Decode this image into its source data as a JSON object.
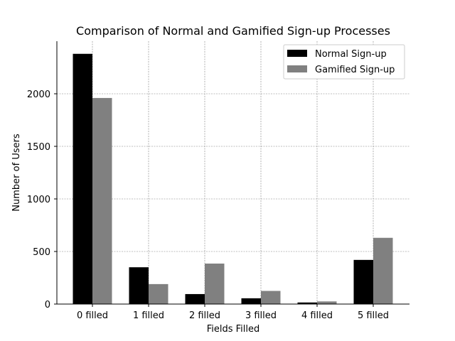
{
  "chart_data": {
    "type": "bar",
    "title": "Comparison of Normal and Gamified Sign-up Processes",
    "xlabel": "Fields Filled",
    "ylabel": "Number of Users",
    "categories": [
      "0 filled",
      "1 filled",
      "2 filled",
      "3 filled",
      "4 filled",
      "5 filled"
    ],
    "series": [
      {
        "name": "Normal Sign-up",
        "color": "#000000",
        "values": [
          2380,
          350,
          95,
          55,
          15,
          420
        ]
      },
      {
        "name": "Gamified Sign-up",
        "color": "#808080",
        "values": [
          1960,
          190,
          385,
          125,
          25,
          630
        ]
      }
    ],
    "ylim": [
      0,
      2500
    ],
    "yticks": [
      0,
      500,
      1000,
      1500,
      2000
    ],
    "grid": true,
    "legend_position": "top-right"
  }
}
